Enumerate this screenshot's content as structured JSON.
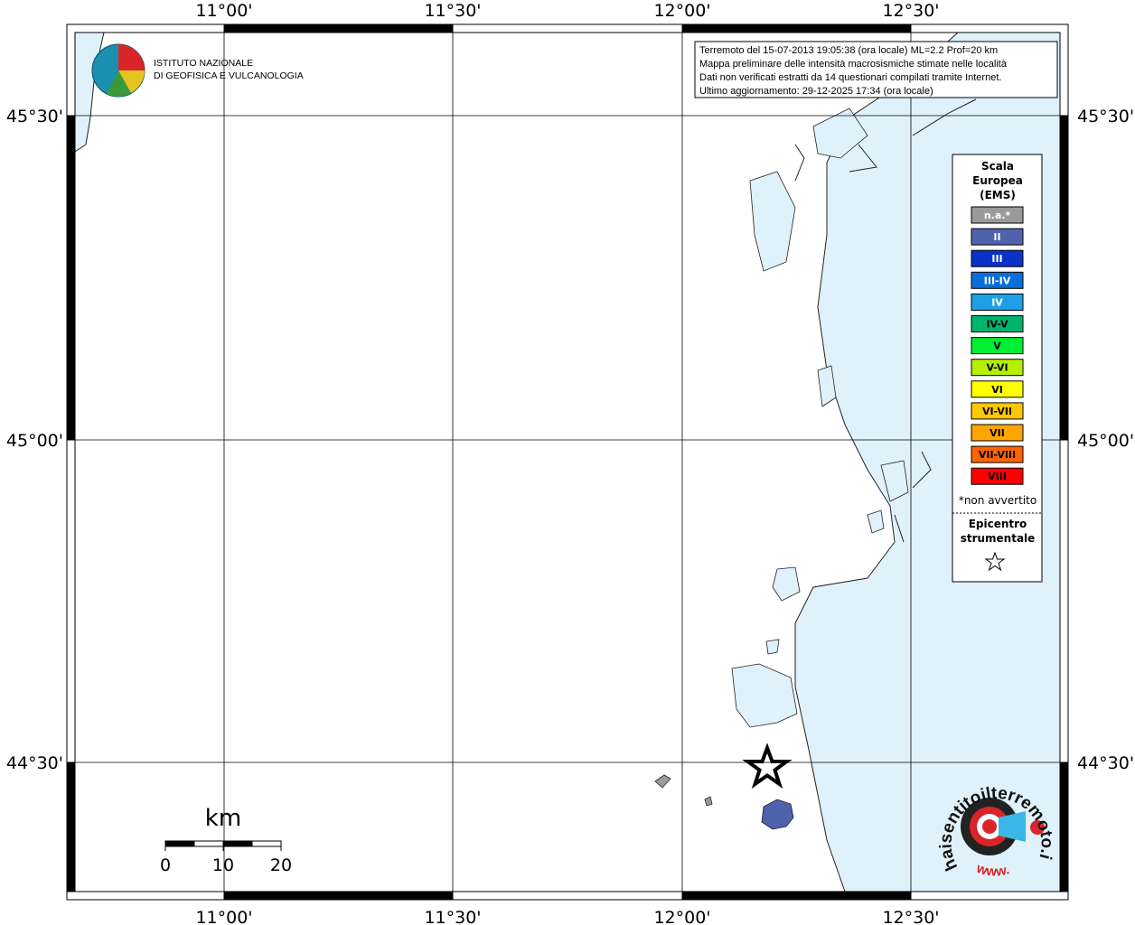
{
  "logo": {
    "line1": "ISTITUTO NAZIONALE",
    "line2": "DI GEOFISICA E VULCANOLOGIA"
  },
  "info": [
    "Terremoto del 15-07-2013 19:05:38 (ora locale) ML=2.2 Prof=20 km",
    "Mappa preliminare delle intensità macrosismiche stimate nelle località",
    "Dati non verificati estratti da 14 questionari compilati tramite Internet.",
    "Ultimo aggiornamento: 29-12-2025 17:34 (ora locale)"
  ],
  "longitude_labels": [
    "11°00'",
    "11°30'",
    "12°00'",
    "12°30'"
  ],
  "latitude_labels": [
    "45°30'",
    "45°00'",
    "44°30'"
  ],
  "legend": {
    "title": [
      "Scala",
      "Europea",
      "(EMS)"
    ],
    "items": [
      {
        "label": "n.a.*",
        "color": "#9a9a9a",
        "text_color": "#ffffff"
      },
      {
        "label": "II",
        "color": "#4f62ad",
        "text_color": "#ffffff"
      },
      {
        "label": "III",
        "color": "#0a32c8",
        "text_color": "#ffffff"
      },
      {
        "label": "III-IV",
        "color": "#0a6ed8",
        "text_color": "#ffffff"
      },
      {
        "label": "IV",
        "color": "#1ea0e6",
        "text_color": "#ffffff"
      },
      {
        "label": "IV-V",
        "color": "#00b46e",
        "text_color": "#000000"
      },
      {
        "label": "V",
        "color": "#00ee33",
        "text_color": "#000000"
      },
      {
        "label": "V-VI",
        "color": "#b4f000",
        "text_color": "#000000"
      },
      {
        "label": "VI",
        "color": "#ffff00",
        "text_color": "#000000"
      },
      {
        "label": "VI-VII",
        "color": "#ffc800",
        "text_color": "#000000"
      },
      {
        "label": "VII",
        "color": "#ffa500",
        "text_color": "#000000"
      },
      {
        "label": "VII-VIII",
        "color": "#ff6400",
        "text_color": "#000000"
      },
      {
        "label": "VIII",
        "color": "#ff0000",
        "text_color": "#000000"
      }
    ],
    "note": "*non avvertito",
    "epicenter": [
      "Epicentro",
      "strumentale"
    ]
  },
  "scale_bar": {
    "unit": "km",
    "labels": [
      "0",
      "10",
      "20"
    ]
  },
  "site_logo": {
    "prefix": "www.",
    "name": "haisentitoilterremoto.it"
  }
}
